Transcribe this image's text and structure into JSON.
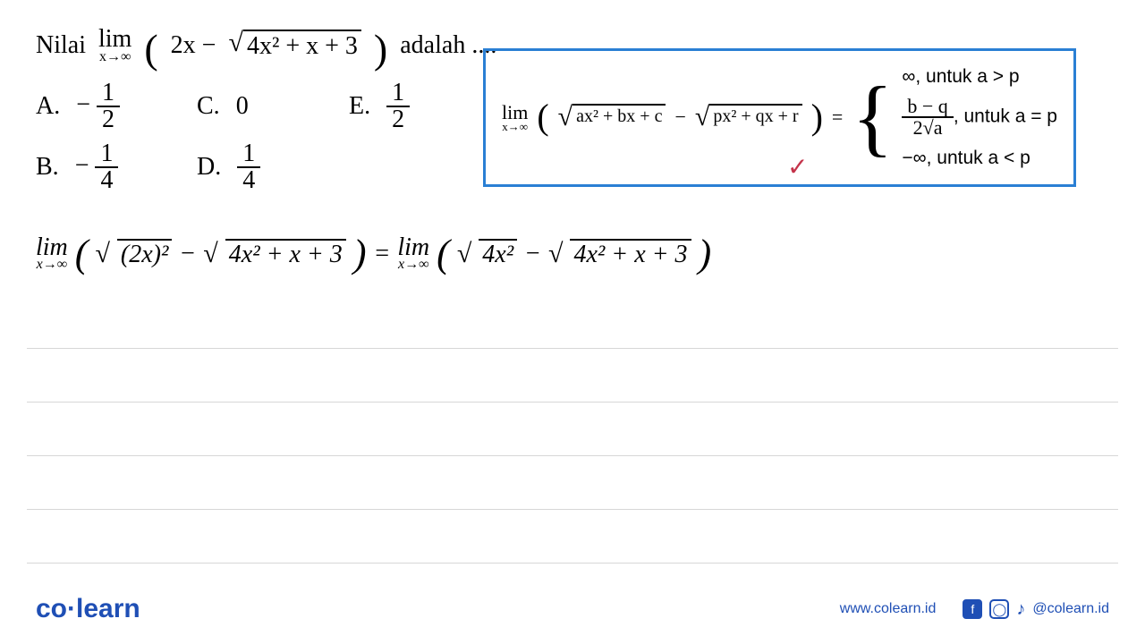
{
  "question": {
    "prefix": "Nilai",
    "lim_word": "lim",
    "lim_sub": "x→∞",
    "expr_left": "2x −",
    "sqrt_body": "4x² + x + 3",
    "suffix": "adalah ...."
  },
  "choices": {
    "A": {
      "label": "A.",
      "sign": "−",
      "num": "1",
      "den": "2"
    },
    "B": {
      "label": "B.",
      "sign": "−",
      "num": "1",
      "den": "4"
    },
    "C": {
      "label": "C.",
      "value": "0"
    },
    "D": {
      "label": "D.",
      "num": "1",
      "den": "4"
    },
    "E": {
      "label": "E.",
      "num": "1",
      "den": "2"
    }
  },
  "formula": {
    "lim_word": "lim",
    "lim_sub": "x→∞",
    "sqrt1": "ax² + bx + c",
    "minus": "−",
    "sqrt2": "px² + qx + r",
    "eq": "=",
    "case1": "∞, untuk a > p",
    "case2_num": "b − q",
    "case2_den": "2√a",
    "case2_suffix": ", untuk a = p",
    "case3": "−∞, untuk a < p",
    "check": "✓",
    "box_color": "#2a7fd4",
    "check_color": "#c4334a"
  },
  "handwriting": {
    "lim_word": "lim",
    "lim_sub": "x→∞",
    "paren_open": "(",
    "sqrt1": "(2x)²",
    "minus": "−",
    "sqrt2": "4x² + x + 3",
    "paren_close": ")",
    "eq": "=",
    "sqrt3": "4x²",
    "sqrt4": "4x² + x + 3"
  },
  "footer": {
    "logo_co": "co",
    "logo_learn": "learn",
    "url": "www.colearn.id",
    "handle": "@colearn.id"
  },
  "colors": {
    "brand": "#1f4fb5",
    "rule": "#d7d7d7",
    "background": "#ffffff"
  }
}
